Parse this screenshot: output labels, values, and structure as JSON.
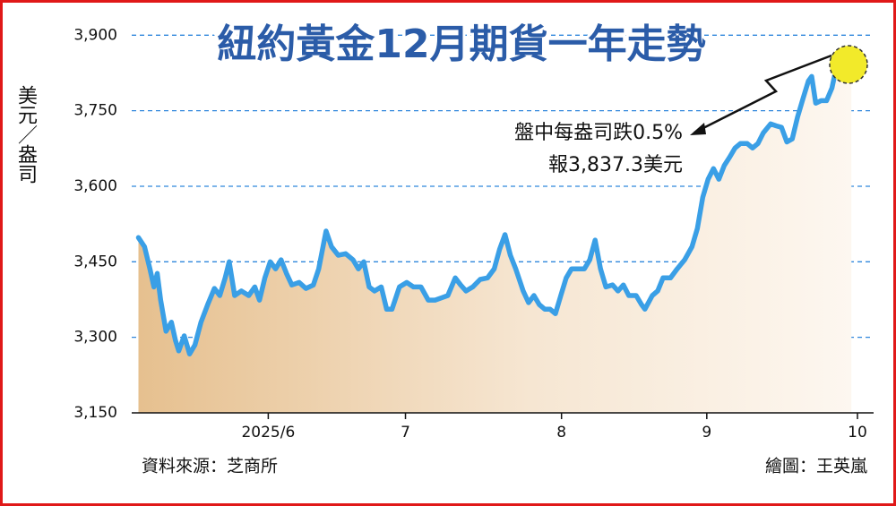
{
  "chart_data": {
    "type": "area-line",
    "title": "紐約黃金12月期貨一年走勢",
    "y_label": "美元／盎司",
    "annotation": [
      "盤中每盎司跌0.5%",
      "報3,837.3美元"
    ],
    "source": "資料來源：芝商所",
    "credit": "繪圖：王英嵐",
    "color": "#3a9fe6",
    "grid": true,
    "xlim": [
      -1,
      109.3
    ],
    "ylim": [
      3150,
      3945
    ],
    "xticks": [
      {
        "value": 19.3,
        "label": "2025/6"
      },
      {
        "value": 39.7,
        "label": "7"
      },
      {
        "value": 62.9,
        "label": "8"
      },
      {
        "value": 84.5,
        "label": "9"
      },
      {
        "value": 106.9,
        "label": "10"
      }
    ],
    "yticks": [
      {
        "value": 3150,
        "label": "3,150"
      },
      {
        "value": 3300,
        "label": "3,300"
      },
      {
        "value": 3450,
        "label": "3,450"
      },
      {
        "value": 3600,
        "label": "3,600"
      },
      {
        "value": 3750,
        "label": "3,750"
      },
      {
        "value": 3900,
        "label": "3,900"
      }
    ],
    "x": [
      0,
      0.9,
      1.7,
      2.3,
      2.8,
      3.3,
      4.1,
      4.9,
      5.5,
      6,
      6.8,
      7.6,
      8.4,
      9.3,
      10.3,
      11.3,
      12.1,
      12.9,
      13.5,
      14.3,
      15.3,
      16.4,
      17.3,
      18,
      18.8,
      19.6,
      20.4,
      21.2,
      22,
      22.8,
      23.9,
      24.9,
      26,
      26.8,
      27.9,
      28.7,
      29.7,
      30.8,
      31.9,
      32.7,
      33.5,
      34.3,
      35.1,
      36.1,
      36.9,
      37.7,
      38.8,
      39.9,
      40.9,
      42,
      43.1,
      44.1,
      45.2,
      46,
      47.1,
      47.9,
      48.7,
      49.7,
      50.8,
      51.9,
      52.9,
      53.7,
      54.5,
      55.3,
      56.1,
      57.2,
      58,
      58.8,
      59.6,
      60.4,
      61.2,
      62,
      62.8,
      63.6,
      64.4,
      65.2,
      66.3,
      67.1,
      67.9,
      68.7,
      69.5,
      70.5,
      71.3,
      72.1,
      72.9,
      74,
      74.8,
      75.3,
      76.4,
      77.2,
      78,
      79.1,
      80.1,
      81.2,
      82.3,
      83.1,
      83.9,
      84.7,
      85.5,
      86.3,
      87.1,
      87.9,
      88.7,
      89.5,
      90.5,
      91.3,
      92.1,
      92.9,
      94,
      94.8,
      95.6,
      96.4,
      97.2,
      98,
      98.8,
      99.6,
      100.1,
      100.7,
      101.5,
      102.3,
      103.1,
      103.9,
      104.7,
      105.5,
      106
    ],
    "values": [
      3498,
      3480,
      3436,
      3400,
      3427,
      3374,
      3312,
      3330,
      3294,
      3273,
      3303,
      3267,
      3285,
      3330,
      3365,
      3397,
      3383,
      3418,
      3450,
      3383,
      3392,
      3383,
      3400,
      3374,
      3418,
      3450,
      3436,
      3454,
      3427,
      3404,
      3409,
      3397,
      3404,
      3436,
      3511,
      3480,
      3463,
      3466,
      3454,
      3436,
      3450,
      3400,
      3392,
      3400,
      3356,
      3356,
      3400,
      3409,
      3400,
      3400,
      3374,
      3374,
      3379,
      3383,
      3418,
      3404,
      3392,
      3400,
      3415,
      3418,
      3436,
      3475,
      3504,
      3463,
      3436,
      3392,
      3369,
      3383,
      3365,
      3356,
      3356,
      3347,
      3383,
      3418,
      3436,
      3436,
      3436,
      3454,
      3493,
      3436,
      3400,
      3404,
      3392,
      3404,
      3383,
      3383,
      3365,
      3356,
      3383,
      3392,
      3418,
      3418,
      3436,
      3454,
      3480,
      3516,
      3578,
      3614,
      3635,
      3614,
      3641,
      3658,
      3676,
      3685,
      3685,
      3676,
      3685,
      3706,
      3724,
      3720,
      3717,
      3688,
      3694,
      3738,
      3774,
      3809,
      3818,
      3765,
      3770,
      3770,
      3795,
      3845,
      3859,
      3848,
      3837
    ]
  }
}
